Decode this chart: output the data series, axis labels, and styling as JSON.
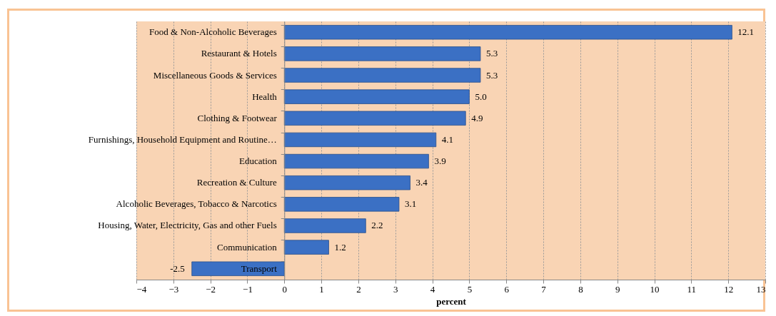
{
  "chart_data": {
    "type": "bar",
    "orientation": "horizontal",
    "categories": [
      "Food & Non-Alcoholic Beverages",
      "Restaurant & Hotels",
      "Miscellaneous Goods & Services",
      "Health",
      "Clothing & Footwear",
      "Furnishings, Household Equipment and Routine…",
      "Education",
      "Recreation & Culture",
      "Alcoholic Beverages, Tobacco & Narcotics",
      "Housing, Water, Electricity, Gas and other Fuels",
      "Communication",
      "Transport"
    ],
    "values": [
      12.1,
      5.3,
      5.3,
      5.0,
      4.9,
      4.1,
      3.9,
      3.4,
      3.1,
      2.2,
      1.2,
      -2.5
    ],
    "value_labels": [
      "12.1",
      "5.3",
      "5.3",
      "5.0",
      "4.9",
      "4.1",
      "3.9",
      "3.4",
      "3.1",
      "2.2",
      "1.2",
      "-2.5"
    ],
    "color": "#3b70c4",
    "xlim": [
      -4,
      13
    ],
    "xticks": [
      -4,
      -3,
      -2,
      -1,
      0,
      1,
      2,
      3,
      4,
      5,
      6,
      7,
      8,
      9,
      10,
      11,
      12,
      13
    ],
    "xlabel": "percent",
    "grid": "x"
  }
}
